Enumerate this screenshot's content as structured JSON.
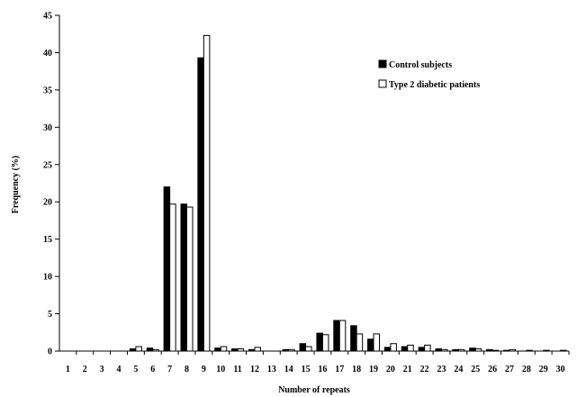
{
  "chart_data": {
    "type": "bar",
    "title": "",
    "xlabel": "Number of repeats",
    "ylabel": "Frequency (%)",
    "ylim": [
      0,
      45
    ],
    "yticks": [
      "0",
      "5",
      "10",
      "15",
      "20",
      "25",
      "30",
      "35",
      "40",
      "45"
    ],
    "grid": false,
    "legend_position": "top-right",
    "categories": [
      "1",
      "2",
      "3",
      "4",
      "5",
      "6",
      "7",
      "8",
      "9",
      "10",
      "11",
      "12",
      "13",
      "14",
      "15",
      "16",
      "17",
      "18",
      "19",
      "20",
      "21",
      "22",
      "23",
      "24",
      "25",
      "26",
      "27",
      "28",
      "29",
      "30"
    ],
    "series": [
      {
        "name": "Control subjects",
        "fill": "#000000",
        "values": [
          0,
          0,
          0,
          0,
          0.3,
          0.4,
          22,
          19.7,
          39.3,
          0.4,
          0.3,
          0.2,
          0,
          0.2,
          1.0,
          2.4,
          4.1,
          3.4,
          1.6,
          0.5,
          0.6,
          0.5,
          0.3,
          0.2,
          0.4,
          0.2,
          0.1,
          0,
          0,
          0
        ]
      },
      {
        "name": "Type 2 diabetic patients",
        "fill": "#ffffff",
        "values": [
          0,
          0,
          0,
          0,
          0.6,
          0.2,
          19.7,
          19.3,
          42.3,
          0.6,
          0.3,
          0.5,
          0,
          0.2,
          0.6,
          2.2,
          4.1,
          2.3,
          2.3,
          1.0,
          0.8,
          0.8,
          0.2,
          0.2,
          0.3,
          0.1,
          0.2,
          0.1,
          0.1,
          0.1
        ]
      }
    ]
  }
}
